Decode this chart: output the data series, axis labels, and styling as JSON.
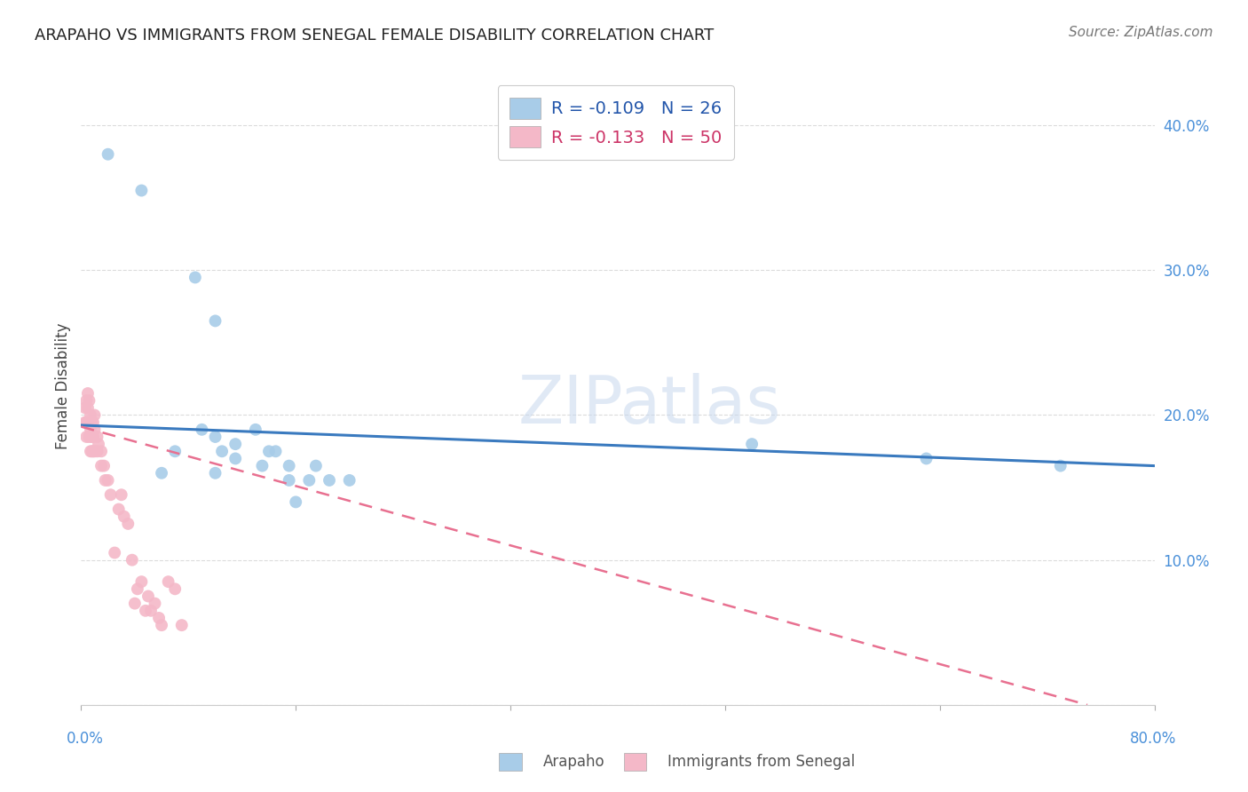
{
  "title": "ARAPAHO VS IMMIGRANTS FROM SENEGAL FEMALE DISABILITY CORRELATION CHART",
  "source": "Source: ZipAtlas.com",
  "ylabel": "Female Disability",
  "watermark": "ZIPatlas",
  "arapaho_color": "#a8cce8",
  "senegal_color": "#f4b8c8",
  "arapaho_line_color": "#3a7abf",
  "senegal_line_color": "#e87090",
  "background_color": "#ffffff",
  "grid_color": "#cccccc",
  "xlim": [
    0.0,
    0.8
  ],
  "ylim": [
    0.0,
    0.44
  ],
  "yticks": [
    0.0,
    0.1,
    0.2,
    0.3,
    0.4
  ],
  "ytick_labels": [
    "",
    "10.0%",
    "20.0%",
    "30.0%",
    "40.0%"
  ],
  "arapaho_x": [
    0.02,
    0.045,
    0.085,
    0.1,
    0.09,
    0.1,
    0.13,
    0.105,
    0.115,
    0.14,
    0.115,
    0.145,
    0.155,
    0.175,
    0.2,
    0.5,
    0.63,
    0.73,
    0.07,
    0.06,
    0.1,
    0.135,
    0.155,
    0.17,
    0.16,
    0.185
  ],
  "arapaho_y": [
    0.38,
    0.355,
    0.295,
    0.265,
    0.19,
    0.185,
    0.19,
    0.175,
    0.18,
    0.175,
    0.17,
    0.175,
    0.165,
    0.165,
    0.155,
    0.18,
    0.17,
    0.165,
    0.175,
    0.16,
    0.16,
    0.165,
    0.155,
    0.155,
    0.14,
    0.155
  ],
  "senegal_x": [
    0.003,
    0.003,
    0.004,
    0.004,
    0.004,
    0.005,
    0.005,
    0.005,
    0.006,
    0.006,
    0.006,
    0.007,
    0.007,
    0.007,
    0.008,
    0.008,
    0.008,
    0.009,
    0.009,
    0.009,
    0.01,
    0.01,
    0.01,
    0.012,
    0.012,
    0.013,
    0.015,
    0.015,
    0.017,
    0.018,
    0.02,
    0.022,
    0.025,
    0.028,
    0.03,
    0.032,
    0.035,
    0.038,
    0.04,
    0.042,
    0.045,
    0.048,
    0.05,
    0.052,
    0.055,
    0.058,
    0.06,
    0.065,
    0.07,
    0.075
  ],
  "senegal_y": [
    0.205,
    0.195,
    0.21,
    0.195,
    0.185,
    0.215,
    0.205,
    0.195,
    0.21,
    0.195,
    0.185,
    0.2,
    0.19,
    0.175,
    0.195,
    0.185,
    0.175,
    0.195,
    0.185,
    0.175,
    0.2,
    0.19,
    0.175,
    0.185,
    0.175,
    0.18,
    0.175,
    0.165,
    0.165,
    0.155,
    0.155,
    0.145,
    0.105,
    0.135,
    0.145,
    0.13,
    0.125,
    0.1,
    0.07,
    0.08,
    0.085,
    0.065,
    0.075,
    0.065,
    0.07,
    0.06,
    0.055,
    0.085,
    0.08,
    0.055
  ],
  "arapaho_trend_x": [
    0.0,
    0.8
  ],
  "arapaho_trend_y": [
    0.193,
    0.165
  ],
  "senegal_trend_x": [
    0.0,
    0.75
  ],
  "senegal_trend_y": [
    0.192,
    0.0
  ],
  "legend_labels": [
    "R = -0.109   N = 26",
    "R = -0.133   N = 50"
  ],
  "bottom_legend_labels": [
    "Arapaho",
    "Immigrants from Senegal"
  ]
}
